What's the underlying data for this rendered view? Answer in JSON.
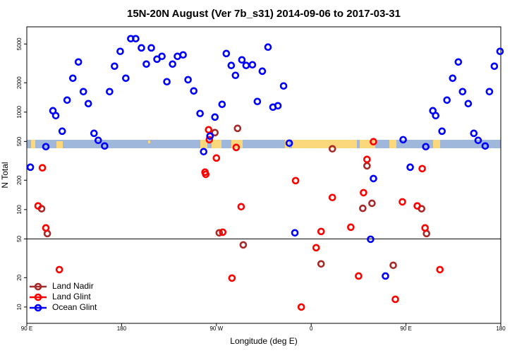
{
  "chart_data": {
    "type": "scatter",
    "title": "15N-20N August (Ver 7b_s31)   2014-09-06 to 2017-03-31",
    "xlabel": "Longitude (deg E)",
    "ylabel": "N Total",
    "xlim": [
      90,
      540
    ],
    "ylim": [
      6.8,
      7500
    ],
    "log_y": true,
    "legend": "bottom-left",
    "reference_line": 50,
    "xticks": [
      {
        "value": 90,
        "label": "90 E"
      },
      {
        "value": 180,
        "label": "180"
      },
      {
        "value": 270,
        "label": "90 W"
      },
      {
        "value": 360,
        "label": "0"
      },
      {
        "value": 450,
        "label": "90 E"
      },
      {
        "value": 540,
        "label": "180"
      }
    ],
    "yticks": [
      10,
      20,
      50,
      100,
      200,
      500,
      1000,
      2000,
      5000
    ],
    "series": [
      {
        "name": "Land Nadir",
        "color": "#a52a2a",
        "x": [
          104.1,
          109.5,
          268.6,
          272.7,
          290.1,
          295.5,
          369.4,
          380.1,
          409.0,
          413.0,
          417.7,
          437.9,
          464.8,
          469.5
        ],
        "values": [
          102,
          56.7,
          616,
          57.7,
          681,
          43.4,
          27.7,
          420,
          103,
          281,
          116,
          26.8,
          102,
          56.7
        ]
      },
      {
        "name": "Land Glint",
        "color": "#ff0000",
        "x": [
          104.8,
          100.7,
          108.1,
          120.9,
          259.2,
          259.9,
          262.6,
          263.3,
          270.0,
          276.0,
          284.8,
          288.8,
          293.5,
          345.2,
          350.6,
          364.7,
          369.4,
          380.1,
          397.6,
          405.0,
          409.7,
          413.0,
          419.1,
          439.9,
          446.6,
          460.7,
          465.4,
          468.1,
          482.2
        ],
        "values": [
          268,
          109,
          64.8,
          24.2,
          242,
          230,
          659,
          521,
          338,
          58.6,
          19.8,
          434,
          107,
          198,
          10,
          40.6,
          59.6,
          133,
          65.9,
          20.8,
          149,
          327,
          497,
          12.0,
          120,
          109,
          263,
          64.8,
          24.2
        ]
      },
      {
        "name": "Ocean Glint",
        "color": "#0000ff",
        "x": [
          93.4,
          108.1,
          114.8,
          117.5,
          123.6,
          128.3,
          133.7,
          139.0,
          143.7,
          148.4,
          153.8,
          157.8,
          163.9,
          168.6,
          173.3,
          178.7,
          184.0,
          188.7,
          193.4,
          198.8,
          203.5,
          208.2,
          213.6,
          218.3,
          223.0,
          228.4,
          233.0,
          238.4,
          243.1,
          248.5,
          254.5,
          257.9,
          263.9,
          268.6,
          275.4,
          279.4,
          284.1,
          288.1,
          294.2,
          298.2,
          304.2,
          308.9,
          313.6,
          319.0,
          323.7,
          328.4,
          333.8,
          339.2,
          344.5,
          419.1,
          416.4,
          430.5,
          447.3,
          454.0,
          468.8,
          475.5,
          478.2,
          484.2,
          488.9,
          494.3,
          499.7,
          503.7,
          509.1,
          514.4,
          518.5,
          525.2,
          529.2,
          533.9,
          539.3
        ],
        "values": [
          272,
          442,
          1033,
          920,
          637,
          1328,
          2228,
          3270,
          1622,
          1222,
          606,
          513,
          449,
          1622,
          2958,
          4200,
          2228,
          5670,
          5670,
          4560,
          3110,
          4560,
          3490,
          3735,
          2050,
          3110,
          3735,
          3865,
          2150,
          1650,
          968,
          393,
          567,
          889,
          1202,
          3990,
          3010,
          2382,
          3437,
          3010,
          3060,
          1285,
          2630,
          4645,
          1124,
          1162,
          1855,
          480,
          57.7,
          208,
          49.6,
          20.8,
          521,
          272,
          442,
          1033,
          920,
          637,
          1328,
          2228,
          3270,
          1622,
          1222,
          606,
          513,
          449,
          1622,
          2958,
          4200
        ]
      }
    ]
  }
}
